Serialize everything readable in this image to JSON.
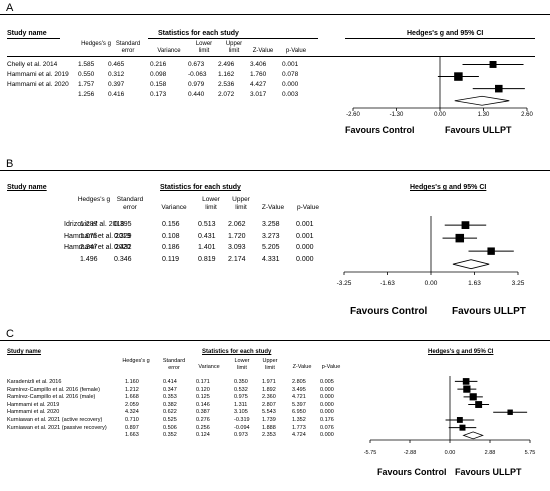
{
  "chart_data": [
    {
      "panel": "A",
      "type": "forest",
      "title": "Hedges's g and 95% CI",
      "header_group": "Statistics for each study",
      "columns": [
        "Study name",
        "Hedges's g",
        "Standard error",
        "Variance",
        "Lower limit",
        "Upper limit",
        "Z-Value",
        "p-Value"
      ],
      "rows": [
        {
          "study": "Chelly et al. 2014",
          "g": "1.585",
          "se": "0.465",
          "var": "0.216",
          "lower": "0.673",
          "upper": "2.496",
          "z": "3.406",
          "p": "0.001"
        },
        {
          "study": "Hammami et al. 2019",
          "g": "0.550",
          "se": "0.312",
          "var": "0.098",
          "lower": "-0.063",
          "upper": "1.162",
          "z": "1.760",
          "p": "0.078"
        },
        {
          "study": "Hammami et al. 2020",
          "g": "1.757",
          "se": "0.397",
          "var": "0.158",
          "lower": "0.979",
          "upper": "2.536",
          "z": "4.427",
          "p": "0.000"
        }
      ],
      "summary": {
        "g": "1.256",
        "se": "0.416",
        "var": "0.173",
        "lower": "0.440",
        "upper": "2.072",
        "z": "3.017",
        "p": "0.003"
      },
      "axis_ticks": [
        "-2.60",
        "-1.30",
        "0.00",
        "1.30",
        "2.60"
      ],
      "xlim": [
        -2.6,
        2.6
      ],
      "favours_left": "Favours Control",
      "favours_right": "Favours ULLPT"
    },
    {
      "panel": "B",
      "type": "forest",
      "title": "Hedges's g and 95% CI",
      "header_group": "Statistics for each study",
      "columns": [
        "Study name",
        "Hedges's g",
        "Standard error",
        "Variance",
        "Lower limit",
        "Upper limit",
        "Z-Value",
        "p-Value"
      ],
      "rows": [
        {
          "study": "Idrizovic et al. 2018",
          "g": "1.287",
          "se": "0.395",
          "var": "0.156",
          "lower": "0.513",
          "upper": "2.062",
          "z": "3.258",
          "p": "0.001"
        },
        {
          "study": "Hammami et al. 2019",
          "g": "1.075",
          "se": "0.329",
          "var": "0.108",
          "lower": "0.431",
          "upper": "1.720",
          "z": "3.273",
          "p": "0.001"
        },
        {
          "study": "Hammami et al. 2020",
          "g": "2.247",
          "se": "0.432",
          "var": "0.186",
          "lower": "1.401",
          "upper": "3.093",
          "z": "5.205",
          "p": "0.000"
        }
      ],
      "summary": {
        "g": "1.496",
        "se": "0.346",
        "var": "0.119",
        "lower": "0.819",
        "upper": "2.174",
        "z": "4.331",
        "p": "0.000"
      },
      "axis_ticks": [
        "-3.25",
        "-1.63",
        "0.00",
        "1.63",
        "3.25"
      ],
      "xlim": [
        -3.25,
        3.25
      ],
      "favours_left": "Favours Control",
      "favours_right": "Favours ULLPT"
    },
    {
      "panel": "C",
      "type": "forest",
      "title": "Hedges's g and 95% CI",
      "header_group": "Statistics for each study",
      "columns": [
        "Study name",
        "Hedges's g",
        "Standard error",
        "Variance",
        "Lower limit",
        "Upper limit",
        "Z-Value",
        "p-Value"
      ],
      "rows": [
        {
          "study": "Karadenizli et al. 2016",
          "g": "1.160",
          "se": "0.414",
          "var": "0.171",
          "lower": "0.350",
          "upper": "1.971",
          "z": "2.805",
          "p": "0.005"
        },
        {
          "study": "Ramírez-Campillo et al. 2016 (female)",
          "g": "1.212",
          "se": "0.347",
          "var": "0.120",
          "lower": "0.532",
          "upper": "1.892",
          "z": "3.495",
          "p": "0.000"
        },
        {
          "study": "Ramírez-Campillo et al. 2016 (male)",
          "g": "1.668",
          "se": "0.353",
          "var": "0.125",
          "lower": "0.975",
          "upper": "2.360",
          "z": "4.721",
          "p": "0.000"
        },
        {
          "study": "Hammami et al. 2019",
          "g": "2.059",
          "se": "0.382",
          "var": "0.146",
          "lower": "1.311",
          "upper": "2.807",
          "z": "5.397",
          "p": "0.000"
        },
        {
          "study": "Hammami et al. 2020",
          "g": "4.324",
          "se": "0.622",
          "var": "0.387",
          "lower": "3.105",
          "upper": "5.543",
          "z": "6.950",
          "p": "0.000"
        },
        {
          "study": "Kurniawan et al. 2021 (active recovery)",
          "g": "0.710",
          "se": "0.525",
          "var": "0.276",
          "lower": "-0.319",
          "upper": "1.739",
          "z": "1.352",
          "p": "0.176"
        },
        {
          "study": "Kurniawan et al. 2021 (passive recovery)",
          "g": "0.897",
          "se": "0.506",
          "var": "0.256",
          "lower": "-0.094",
          "upper": "1.888",
          "z": "1.773",
          "p": "0.076"
        }
      ],
      "summary": {
        "g": "1.663",
        "se": "0.352",
        "var": "0.124",
        "lower": "0.973",
        "upper": "2.353",
        "z": "4.724",
        "p": "0.000"
      },
      "axis_ticks": [
        "-5.75",
        "-2.88",
        "0.00",
        "2.88",
        "5.75"
      ],
      "xlim": [
        -5.75,
        5.75
      ],
      "favours_left": "Favours Control",
      "favours_right": "Favours ULLPT"
    }
  ]
}
